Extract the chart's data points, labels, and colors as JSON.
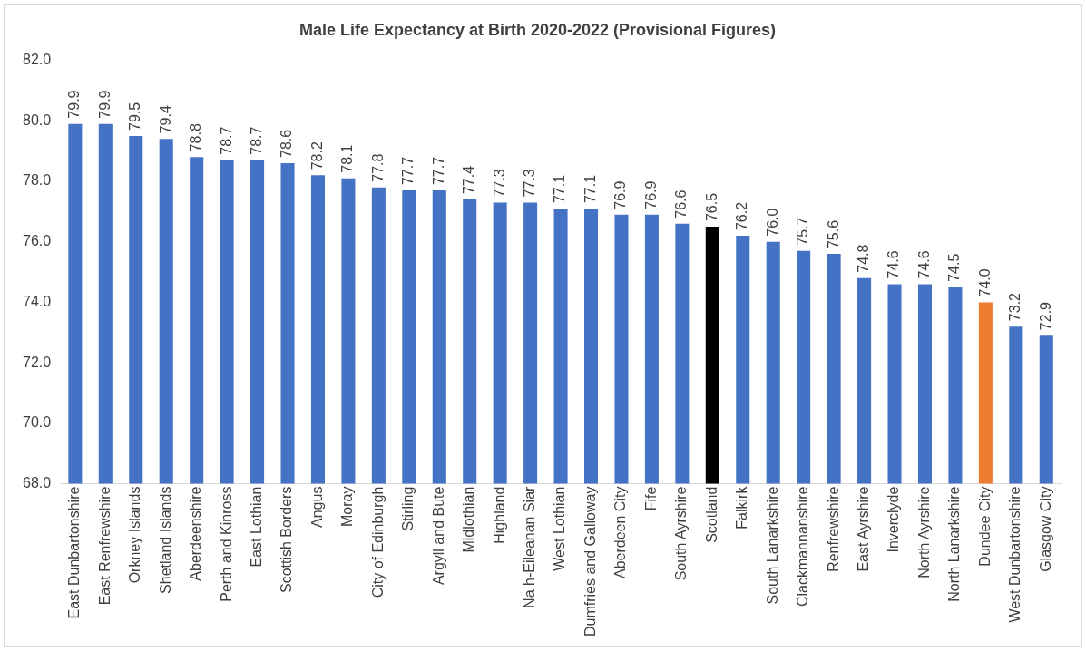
{
  "chart_data": {
    "type": "bar",
    "title": "Male Life Expectancy at Birth 2020-2022 (Provisional Figures)",
    "categories": [
      "East Dunbartonshire",
      "East Renfrewshire",
      "Orkney Islands",
      "Shetland Islands",
      "Aberdeenshire",
      "Perth and Kinross",
      "East Lothian",
      "Scottish Borders",
      "Angus",
      "Moray",
      "City of Edinburgh",
      "Stirling",
      "Argyll and Bute",
      "Midlothian",
      "Highland",
      "Na h-Eileanan Siar",
      "West Lothian",
      "Dumfries and Galloway",
      "Aberdeen City",
      "Fife",
      "South Ayrshire",
      "Scotland",
      "Falkirk",
      "South Lanarkshire",
      "Clackmannanshire",
      "Renfrewshire",
      "East Ayrshire",
      "Inverclyde",
      "North Ayrshire",
      "North Lanarkshire",
      "Dundee City",
      "West Dunbartonshire",
      "Glasgow City"
    ],
    "values": [
      79.9,
      79.9,
      79.5,
      79.4,
      78.8,
      78.7,
      78.7,
      78.6,
      78.2,
      78.1,
      77.8,
      77.7,
      77.7,
      77.4,
      77.3,
      77.3,
      77.1,
      77.1,
      76.9,
      76.9,
      76.6,
      76.5,
      76.2,
      76.0,
      75.7,
      75.6,
      74.8,
      74.6,
      74.6,
      74.5,
      74.0,
      73.2,
      72.9
    ],
    "value_labels": [
      "79.9",
      "79.9",
      "79.5",
      "79.4",
      "78.8",
      "78.7",
      "78.7",
      "78.6",
      "78.2",
      "78.1",
      "77.8",
      "77.7",
      "77.7",
      "77.4",
      "77.3",
      "77.3",
      "77.1",
      "77.1",
      "76.9",
      "76.9",
      "76.6",
      "76.5",
      "76.2",
      "76.0",
      "75.7",
      "75.6",
      "74.8",
      "74.6",
      "74.6",
      "74.5",
      "74.0",
      "73.2",
      "72.9"
    ],
    "colors": [
      "#4472c4",
      "#4472c4",
      "#4472c4",
      "#4472c4",
      "#4472c4",
      "#4472c4",
      "#4472c4",
      "#4472c4",
      "#4472c4",
      "#4472c4",
      "#4472c4",
      "#4472c4",
      "#4472c4",
      "#4472c4",
      "#4472c4",
      "#4472c4",
      "#4472c4",
      "#4472c4",
      "#4472c4",
      "#4472c4",
      "#4472c4",
      "#000000",
      "#4472c4",
      "#4472c4",
      "#4472c4",
      "#4472c4",
      "#4472c4",
      "#4472c4",
      "#4472c4",
      "#4472c4",
      "#ed7d31",
      "#4472c4",
      "#4472c4"
    ],
    "ylim": [
      68,
      82
    ],
    "yticks": [
      {
        "value": 68,
        "label": "68.0"
      },
      {
        "value": 70,
        "label": "70.0"
      },
      {
        "value": 72,
        "label": "72.0"
      },
      {
        "value": 74,
        "label": "74.0"
      },
      {
        "value": 76,
        "label": "76.0"
      },
      {
        "value": 78,
        "label": "78.0"
      },
      {
        "value": 80,
        "label": "80.0"
      },
      {
        "value": 82,
        "label": "82.0"
      }
    ],
    "grid": false,
    "legend": false
  }
}
